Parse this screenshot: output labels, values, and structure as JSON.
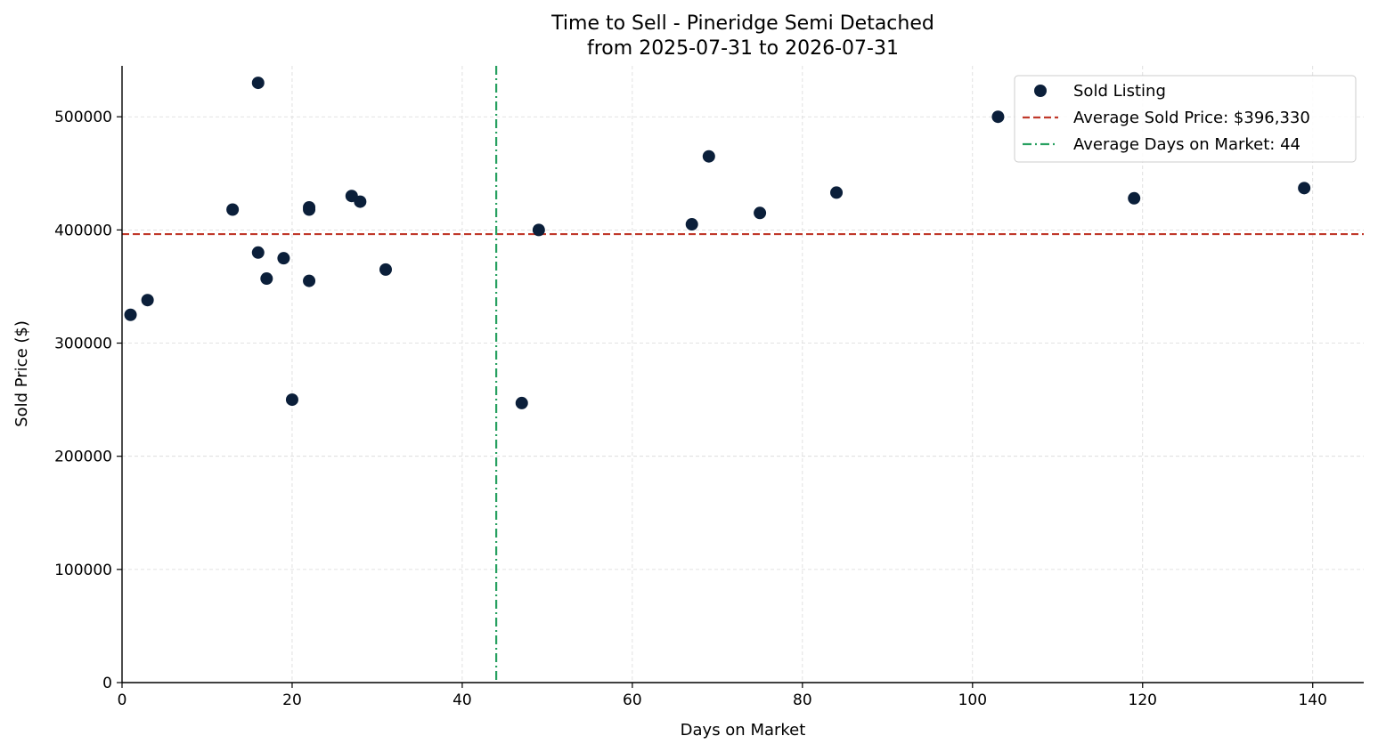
{
  "chart_data": {
    "type": "scatter",
    "title": "Time to Sell - Pineridge Semi Detached",
    "subtitle": "from 2025-07-31 to 2026-07-31",
    "xlabel": "Days on Market",
    "ylabel": "Sold Price ($)",
    "xlim": [
      0,
      146
    ],
    "ylim": [
      0,
      545000
    ],
    "xticks": [
      0,
      20,
      40,
      60,
      80,
      100,
      120,
      140
    ],
    "yticks": [
      0,
      100000,
      200000,
      300000,
      400000,
      500000
    ],
    "grid": true,
    "legend_position": "top-right",
    "series": [
      {
        "name": "Sold Listing",
        "color": "#0b1f3a",
        "points": [
          {
            "x": 1,
            "y": 325000
          },
          {
            "x": 3,
            "y": 338000
          },
          {
            "x": 13,
            "y": 418000
          },
          {
            "x": 16,
            "y": 530000
          },
          {
            "x": 16,
            "y": 380000
          },
          {
            "x": 17,
            "y": 357000
          },
          {
            "x": 19,
            "y": 375000
          },
          {
            "x": 20,
            "y": 250000
          },
          {
            "x": 22,
            "y": 420000
          },
          {
            "x": 22,
            "y": 418000
          },
          {
            "x": 22,
            "y": 355000
          },
          {
            "x": 27,
            "y": 430000
          },
          {
            "x": 28,
            "y": 425000
          },
          {
            "x": 31,
            "y": 365000
          },
          {
            "x": 47,
            "y": 247000
          },
          {
            "x": 49,
            "y": 400000
          },
          {
            "x": 67,
            "y": 405000
          },
          {
            "x": 69,
            "y": 465000
          },
          {
            "x": 75,
            "y": 415000
          },
          {
            "x": 84,
            "y": 433000
          },
          {
            "x": 103,
            "y": 500000
          },
          {
            "x": 119,
            "y": 428000
          },
          {
            "x": 139,
            "y": 437000
          }
        ]
      }
    ],
    "reference_lines": [
      {
        "name": "Average Sold Price: $396,330",
        "orientation": "horizontal",
        "value": 396330,
        "color": "#c0392b",
        "style": "dashed"
      },
      {
        "name": "Average Days on Market: 44",
        "orientation": "vertical",
        "value": 44,
        "color": "#27a060",
        "style": "dashdot"
      }
    ]
  }
}
